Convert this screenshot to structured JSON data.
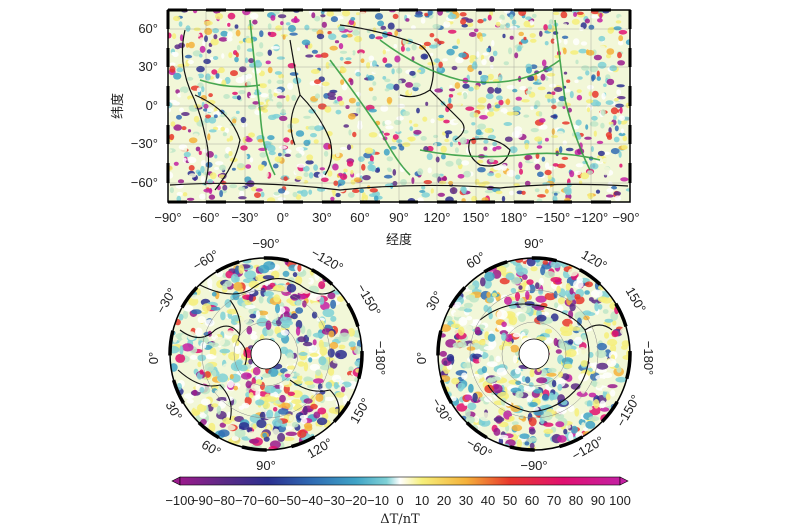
{
  "world_map": {
    "ylabel": "纬度",
    "xlabel": "经度",
    "lat_ticks": [
      "60°",
      "30°",
      "0°",
      "−30°",
      "−60°"
    ],
    "lon_ticks": [
      "−90°",
      "−60°",
      "−30°",
      "0°",
      "30°",
      "60°",
      "90°",
      "120°",
      "150°",
      "180°",
      "−150°",
      "−120°",
      "−90°"
    ]
  },
  "north_polar": {
    "labels": [
      "−90°",
      "−60°",
      "−120°",
      "−30°",
      "−150°",
      "0°",
      "−180°",
      "30°",
      "150°",
      "60°",
      "90°",
      "120°"
    ]
  },
  "south_polar": {
    "labels": [
      "90°",
      "60°",
      "120°",
      "30°",
      "150°",
      "0°",
      "−180°",
      "−30°",
      "−150°",
      "−60°",
      "−90°",
      "−120°"
    ]
  },
  "colorbar": {
    "tick_labels": [
      "−100",
      "−90",
      "−80",
      "−70",
      "−60",
      "−50",
      "−40",
      "−30",
      "−20",
      "−10",
      "0",
      "10",
      "20",
      "30",
      "40",
      "50",
      "60",
      "70",
      "80",
      "90",
      "100"
    ],
    "title": "ΔT/nT",
    "colors": [
      "#9a1a8c",
      "#5b2a86",
      "#2b2f8f",
      "#2f6bb3",
      "#3fa3c6",
      "#7fd1d6",
      "#ffffff",
      "#f6ef7a",
      "#f4b13a",
      "#e8372c",
      "#e0106f",
      "#c41fa2"
    ]
  }
}
